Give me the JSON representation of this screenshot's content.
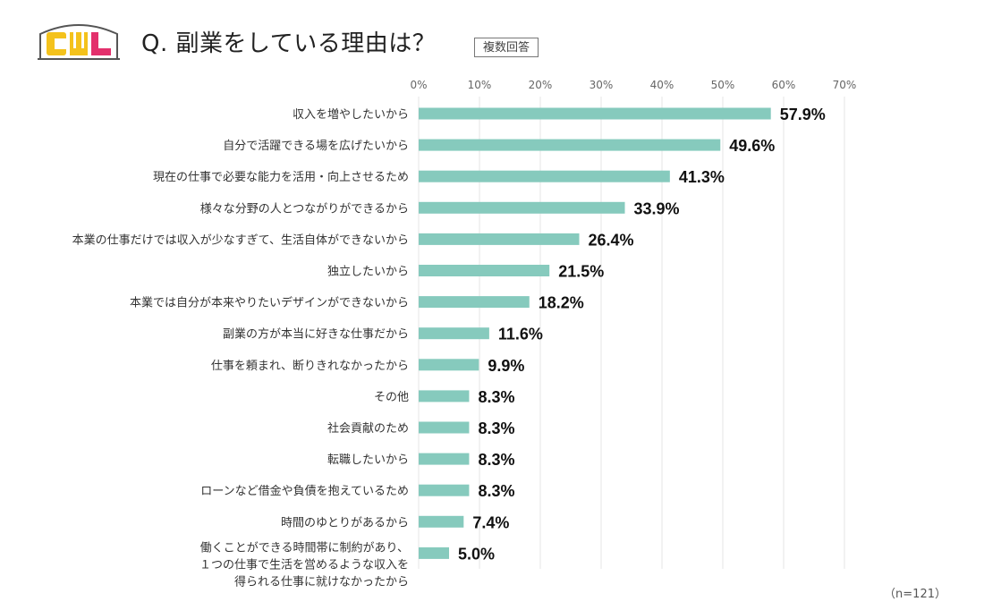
{
  "header": {
    "logo_text": "CWL",
    "title": "Q. 副業をしている理由は？",
    "badge": "複数回答"
  },
  "colors": {
    "bar": "#86cabd",
    "logo_yellow": "#f4c21c",
    "logo_pink": "#e3306c",
    "grid": "#e6e6e6"
  },
  "chart_data": {
    "type": "bar",
    "orientation": "horizontal",
    "categories": [
      "収入を増やしたいから",
      "自分で活躍できる場を広げたいから",
      "現在の仕事で必要な能力を活用・向上させるため",
      "様々な分野の人とつながりができるから",
      "本業の仕事だけでは収入が少なすぎて、生活自体ができないから",
      "独立したいから",
      "本業では自分が本来やりたいデザインができないから",
      "副業の方が本当に好きな仕事だから",
      "仕事を頼まれ、断りきれなかったから",
      "その他",
      "社会貢献のため",
      "転職したいから",
      "ローンなど借金や負債を抱えているため",
      "時間のゆとりがあるから",
      "働くことができる時間帯に制約があり、\n１つの仕事で生活を営めるような収入を\n得られる仕事に就けなかったから"
    ],
    "values": [
      57.9,
      49.6,
      41.3,
      33.9,
      26.4,
      21.5,
      18.2,
      11.6,
      9.9,
      8.3,
      8.3,
      8.3,
      8.3,
      7.4,
      5.0
    ],
    "value_labels": [
      "57.9%",
      "49.6%",
      "41.3%",
      "33.9%",
      "26.4%",
      "21.5%",
      "18.2%",
      "11.6%",
      "9.9%",
      "8.3%",
      "8.3%",
      "8.3%",
      "8.3%",
      "7.4%",
      "5.0%"
    ],
    "xlim": [
      0,
      70
    ],
    "ticks": [
      "0%",
      "10%",
      "20%",
      "30%",
      "40%",
      "50%",
      "60%",
      "70%"
    ],
    "grid": true,
    "axis_position": "top"
  },
  "footnote": "（n=121）"
}
